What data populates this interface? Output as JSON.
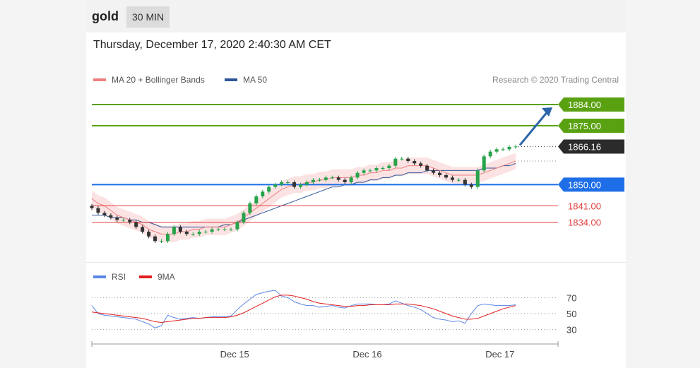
{
  "header": {
    "symbol": "gold",
    "timeframe": "30 MIN"
  },
  "datetime": "Thursday, December 17, 2020 2:40:30 AM CET",
  "credit": "Research © 2020 Trading Central",
  "legend": {
    "ma20": {
      "label": "MA 20 + Bollinger Bands",
      "color": "#f08080"
    },
    "ma50": {
      "label": "MA 50",
      "color": "#2f5597"
    }
  },
  "rsi_legend": {
    "rsi": {
      "label": "RSI",
      "color": "#5b86e5"
    },
    "ma9": {
      "label": "9MA",
      "color": "#e02020"
    }
  },
  "colors": {
    "target": "#5aa112",
    "pivot": "#1e6ee8",
    "support": "#e33b3b",
    "current": "#2b2b2b",
    "up_candle": "#27a34a",
    "down_candle": "#333333",
    "arrow": "#2b65a8"
  },
  "chart_data": [
    {
      "type": "candlestick",
      "instrument": "gold",
      "timeframe": "30 MIN",
      "ylim": [
        1818,
        1890
      ],
      "current_price": {
        "value": 1866.16,
        "label": "1866.16"
      },
      "levels": [
        {
          "value": 1884.0,
          "label": "1884.00",
          "role": "target"
        },
        {
          "value": 1875.0,
          "label": "1875.00",
          "role": "target"
        },
        {
          "value": 1850.0,
          "label": "1850.00",
          "role": "pivot"
        },
        {
          "value": 1841.0,
          "label": "1841.00",
          "role": "support"
        },
        {
          "value": 1834.0,
          "label": "1834.00",
          "role": "support"
        }
      ],
      "x_ticks": [
        "Dec 15",
        "Dec 16",
        "Dec 17"
      ],
      "close": [
        1840,
        1838,
        1837,
        1836,
        1835,
        1835,
        1834,
        1832,
        1830,
        1828,
        1826,
        1826,
        1829,
        1832,
        1830,
        1829,
        1829,
        1830,
        1830,
        1831,
        1831,
        1831,
        1831,
        1834,
        1838,
        1842,
        1845,
        1847,
        1849,
        1850,
        1851,
        1851,
        1849,
        1850,
        1851,
        1852,
        1852,
        1853,
        1853,
        1852,
        1851,
        1853,
        1855,
        1856,
        1856,
        1857,
        1857,
        1858,
        1861,
        1861,
        1860,
        1859,
        1858,
        1856,
        1855,
        1854,
        1853,
        1852,
        1852,
        1850,
        1849,
        1856,
        1862,
        1864,
        1865,
        1865,
        1866,
        1866.16
      ],
      "ma20": [
        1844,
        1842,
        1841,
        1839,
        1837,
        1836,
        1835,
        1834,
        1833,
        1831,
        1830,
        1829,
        1829,
        1829,
        1830,
        1830,
        1831,
        1831,
        1832,
        1832,
        1832,
        1832,
        1833,
        1834,
        1836,
        1838,
        1840,
        1842,
        1844,
        1846,
        1848,
        1849,
        1850,
        1850,
        1851,
        1851,
        1852,
        1852,
        1853,
        1853,
        1853,
        1853,
        1854,
        1854,
        1855,
        1855,
        1856,
        1856,
        1857,
        1857,
        1858,
        1858,
        1858,
        1858,
        1857,
        1856,
        1855,
        1854,
        1854,
        1854,
        1854,
        1854,
        1855,
        1856,
        1857,
        1858,
        1859,
        1860
      ],
      "ma50": [
        1837,
        1837,
        1837,
        1836,
        1836,
        1836,
        1835,
        1835,
        1834,
        1834,
        1833,
        1832,
        1832,
        1832,
        1832,
        1832,
        1832,
        1832,
        1832,
        1832,
        1832,
        1833,
        1833,
        1834,
        1835,
        1836,
        1837,
        1838,
        1839,
        1840,
        1841,
        1842,
        1843,
        1844,
        1845,
        1846,
        1847,
        1848,
        1849,
        1849,
        1850,
        1850,
        1851,
        1851,
        1852,
        1852,
        1853,
        1853,
        1854,
        1854,
        1855,
        1855,
        1855,
        1856,
        1856,
        1856,
        1856,
        1856,
        1856,
        1856,
        1856,
        1856,
        1857,
        1857,
        1857,
        1858,
        1858,
        1859
      ]
    },
    {
      "type": "line",
      "name": "RSI panel",
      "ylim": [
        20,
        80
      ],
      "y_ticks": [
        70,
        50,
        30
      ],
      "series": [
        {
          "name": "RSI",
          "values": [
            60,
            50,
            48,
            47,
            46,
            45,
            44,
            43,
            40,
            37,
            32,
            35,
            48,
            45,
            43,
            44,
            45,
            44,
            45,
            46,
            46,
            46,
            47,
            55,
            62,
            68,
            74,
            76,
            78,
            79,
            72,
            70,
            65,
            62,
            60,
            60,
            58,
            59,
            60,
            58,
            57,
            60,
            62,
            62,
            62,
            61,
            61,
            62,
            66,
            63,
            60,
            58,
            55,
            50,
            45,
            43,
            42,
            40,
            41,
            38,
            50,
            60,
            62,
            61,
            60,
            60,
            60,
            61
          ]
        },
        {
          "name": "9MA",
          "values": [
            52,
            51,
            50,
            49,
            48,
            47,
            46,
            45,
            44,
            42,
            40,
            39,
            40,
            41,
            42,
            43,
            44,
            44,
            45,
            45,
            45,
            45,
            46,
            48,
            51,
            55,
            59,
            63,
            67,
            71,
            73,
            73,
            72,
            70,
            68,
            65,
            63,
            62,
            61,
            60,
            59,
            59,
            60,
            60,
            61,
            61,
            61,
            61,
            62,
            62,
            62,
            61,
            60,
            58,
            56,
            53,
            50,
            47,
            45,
            43,
            43,
            44,
            47,
            50,
            53,
            56,
            58,
            60
          ]
        }
      ]
    }
  ]
}
